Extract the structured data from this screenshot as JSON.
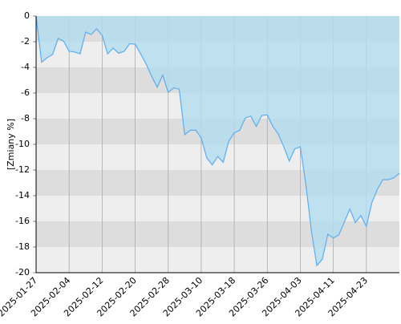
{
  "chart_data": {
    "type": "area",
    "y_label": "[Zmiany %]",
    "categories": [
      "2025-01-27",
      null,
      null,
      null,
      null,
      null,
      "2025-02-04",
      null,
      null,
      null,
      null,
      null,
      "2025-02-12",
      null,
      null,
      null,
      null,
      null,
      "2025-02-20",
      null,
      null,
      null,
      null,
      null,
      "2025-02-28",
      null,
      null,
      null,
      null,
      null,
      "2025-03-10",
      null,
      null,
      null,
      null,
      null,
      "2025-03-18",
      null,
      null,
      null,
      null,
      null,
      "2025-03-26",
      null,
      null,
      null,
      null,
      null,
      "2025-04-03",
      null,
      null,
      null,
      null,
      null,
      "2025-04-11",
      null,
      null,
      null,
      null,
      null,
      "2025-04-23",
      null,
      null,
      null,
      null,
      null,
      null
    ],
    "series": [
      {
        "color": "#5aaef0",
        "fill": "#b3dcef",
        "values": [
          0,
          -3.6,
          -3.25,
          -3.0,
          -1.75,
          -1.95,
          -2.75,
          -2.8,
          -2.95,
          -1.25,
          -1.45,
          -1.0,
          -1.5,
          -2.95,
          -2.5,
          -2.9,
          -2.75,
          -2.15,
          -2.2,
          -2.95,
          -3.75,
          -4.7,
          -5.55,
          -4.6,
          -5.95,
          -5.6,
          -5.7,
          -9.25,
          -8.9,
          -8.9,
          -9.5,
          -11.05,
          -11.6,
          -10.95,
          -11.4,
          -9.75,
          -9.1,
          -8.9,
          -7.95,
          -7.8,
          -8.6,
          -7.75,
          -7.7,
          -8.6,
          -9.2,
          -10.2,
          -11.3,
          -10.35,
          -10.2,
          -13.1,
          -16.7,
          -19.45,
          -18.95,
          -17.0,
          -17.3,
          -17.05,
          -16.05,
          -15.05,
          -16.1,
          -15.55,
          -16.4,
          -14.55,
          -13.5,
          -12.75,
          -12.75,
          -12.6,
          -12.25
        ]
      }
    ],
    "ylim": [
      -20,
      0
    ],
    "yticks": [
      0,
      -2,
      -4,
      -6,
      -8,
      -10,
      -12,
      -14,
      -16,
      -18,
      -20
    ],
    "grid": true,
    "band_colors": [
      "#dddddd",
      "#eeeeee"
    ]
  }
}
